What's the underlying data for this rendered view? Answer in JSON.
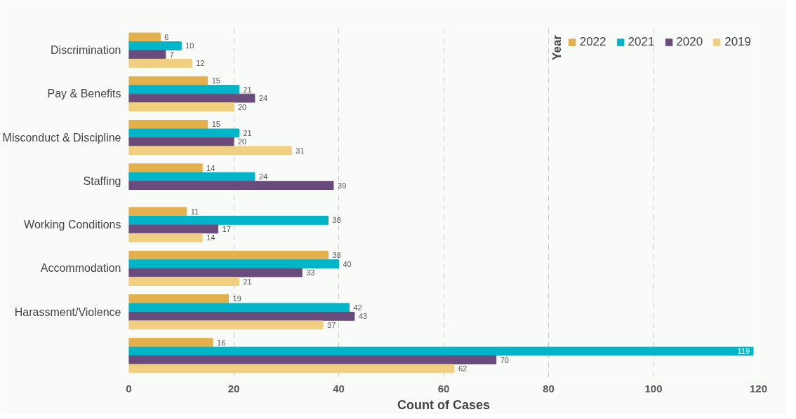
{
  "chart_data": {
    "type": "bar",
    "orientation": "horizontal",
    "xlabel": "Count of Cases",
    "legend_title": "Year",
    "legend": "top right",
    "categories": [
      "Discrimination",
      "Pay & Benefits",
      "Misconduct & Discipline",
      "Staffing",
      "Working Conditions",
      "Accommodation",
      "Harassment/Violence",
      null
    ],
    "series": [
      {
        "name": "2022",
        "color": "#e3b04b",
        "values": [
          6,
          15,
          15,
          14,
          11,
          38,
          19,
          16
        ]
      },
      {
        "name": "2021",
        "color": "#00b5c8",
        "values": [
          10,
          21,
          21,
          24,
          38,
          40,
          42,
          119
        ]
      },
      {
        "name": "2020",
        "color": "#6a4c7c",
        "values": [
          7,
          24,
          20,
          39,
          17,
          33,
          43,
          70
        ]
      },
      {
        "name": "2019",
        "color": "#f0d080",
        "values": [
          12,
          20,
          31,
          null,
          14,
          21,
          37,
          62
        ]
      }
    ],
    "xlim": [
      0,
      120
    ],
    "xticks": [
      0,
      20,
      40,
      60,
      80,
      100,
      120
    ],
    "grid": "x",
    "data_labels": true
  }
}
